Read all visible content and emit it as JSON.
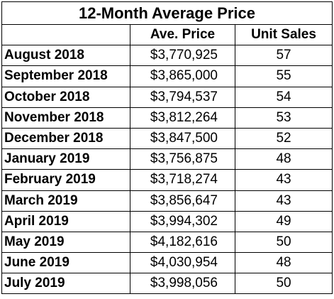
{
  "table": {
    "title": "12-Month Average Price",
    "columns": [
      "",
      "Ave. Price",
      "Unit Sales"
    ],
    "rows": [
      {
        "month": "August 2018",
        "price": "$3,770,925",
        "units": "57"
      },
      {
        "month": "September 2018",
        "price": "$3,865,000",
        "units": "55"
      },
      {
        "month": "October 2018",
        "price": "$3,794,537",
        "units": "54"
      },
      {
        "month": "November 2018",
        "price": "$3,812,264",
        "units": "53"
      },
      {
        "month": "December 2018",
        "price": "$3,847,500",
        "units": "52"
      },
      {
        "month": "January 2019",
        "price": "$3,756,875",
        "units": "48"
      },
      {
        "month": "February 2019",
        "price": "$3,718,274",
        "units": "43"
      },
      {
        "month": "March 2019",
        "price": "$3,856,647",
        "units": "43"
      },
      {
        "month": "April 2019",
        "price": "$3,994,302",
        "units": "49"
      },
      {
        "month": "May 2019",
        "price": "$4,182,616",
        "units": "50"
      },
      {
        "month": "June 2019",
        "price": "$4,030,954",
        "units": "48"
      },
      {
        "month": "July 2019",
        "price": "$3,998,056",
        "units": "50"
      }
    ]
  }
}
